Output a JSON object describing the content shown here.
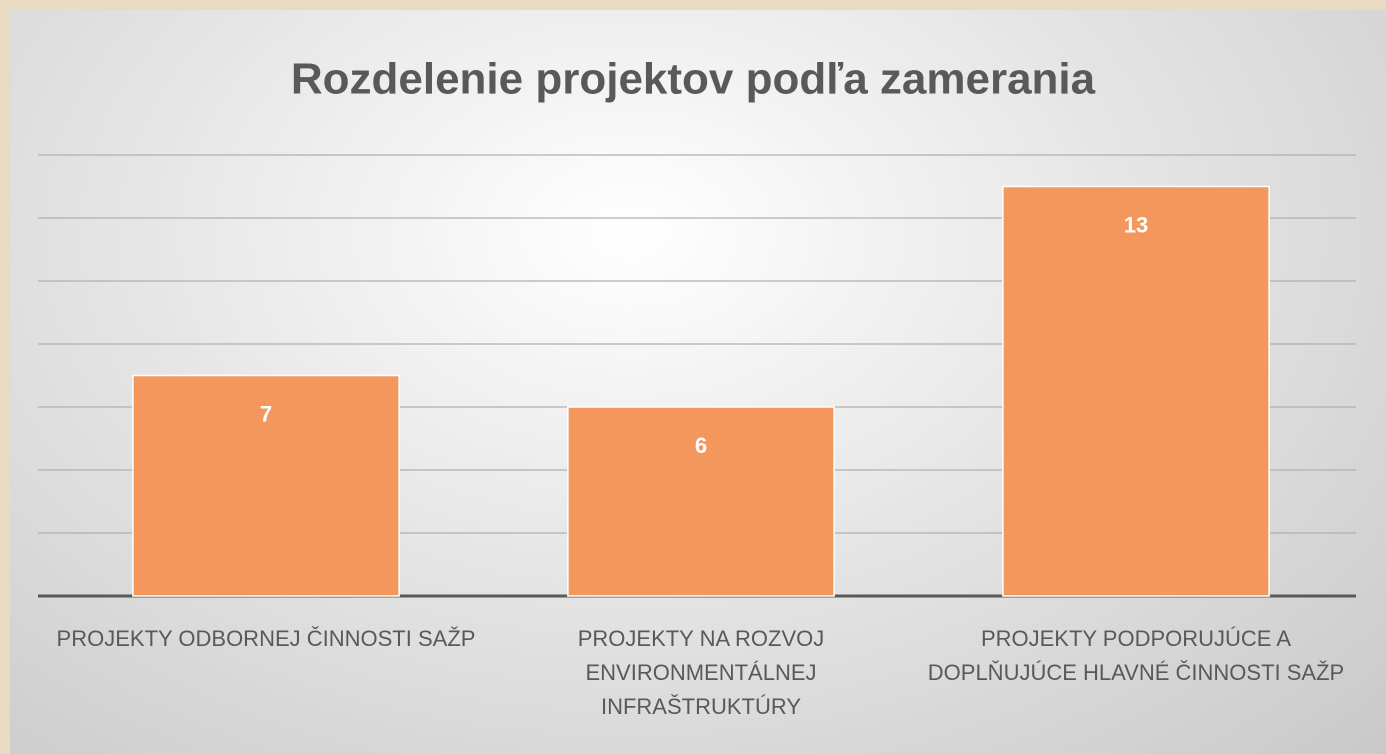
{
  "chart_data": {
    "type": "bar",
    "title": "Rozdelenie projektov podľa zamerania",
    "categories": [
      "PROJEKTY ODBORNEJ ČINNOSTI SAŽP",
      "PROJEKTY NA ROZVOJ ENVIRONMENTÁLNEJ INFRAŠTRUKTÚRY",
      "PROJEKTY PODPORUJÚCE A DOPLŇUJÚCE HLAVNÉ ČINNOSTI SAŽP"
    ],
    "values": [
      7,
      6,
      13
    ],
    "color": "#f4975c",
    "ylim": [
      0,
      14
    ],
    "yticks": [
      0,
      2,
      4,
      6,
      8,
      10,
      12,
      14
    ],
    "grid": true
  }
}
